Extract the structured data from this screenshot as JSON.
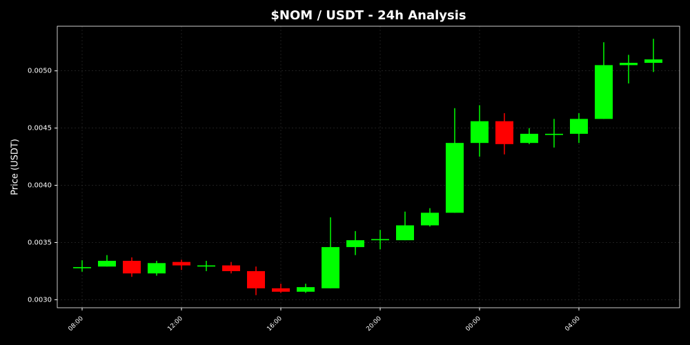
{
  "chart_data": {
    "type": "candlestick",
    "title": "$NOM / USDT - 24h Analysis",
    "y_label": "Price (USDT)",
    "categories": [
      "08:00",
      null,
      null,
      null,
      "12:00",
      null,
      null,
      null,
      "16:00",
      null,
      null,
      null,
      "20:00",
      null,
      null,
      null,
      "00:00",
      null,
      null,
      null,
      "04:00",
      null,
      null,
      null
    ],
    "open": [
      0.003275,
      0.00329,
      0.00334,
      0.00323,
      0.00333,
      0.00329,
      0.0033,
      0.00325,
      0.0031,
      0.00307,
      0.0031,
      0.00346,
      0.00352,
      0.00352,
      0.00365,
      0.00376,
      0.00437,
      0.00456,
      0.00437,
      0.00444,
      0.00445,
      0.00458,
      0.00505,
      0.00507
    ],
    "high": [
      0.003345,
      0.00339,
      0.00337,
      0.00334,
      0.00335,
      0.00334,
      0.00333,
      0.00329,
      0.00314,
      0.00314,
      0.00372,
      0.0036,
      0.00361,
      0.00377,
      0.0038,
      0.004674,
      0.0047,
      0.00463,
      0.0045,
      0.00458,
      0.00463,
      0.00525,
      0.00514,
      0.00528
    ],
    "low": [
      0.003245,
      0.00329,
      0.0032,
      0.00321,
      0.00326,
      0.00325,
      0.00323,
      0.00304,
      0.00306,
      0.00306,
      0.0031,
      0.00339,
      0.00344,
      0.00352,
      0.00364,
      0.00376,
      0.00425,
      0.00427,
      0.00436,
      0.00433,
      0.00437,
      0.00458,
      0.00489,
      0.00499
    ],
    "close": [
      0.003285,
      0.00334,
      0.00323,
      0.00332,
      0.0033,
      0.0033,
      0.00325,
      0.0031,
      0.00307,
      0.00311,
      0.00346,
      0.00352,
      0.00353,
      0.00365,
      0.00376,
      0.00437,
      0.00456,
      0.00436,
      0.00445,
      0.00445,
      0.00458,
      0.00505,
      0.00507,
      0.0051
    ],
    "up_color": "#00ff00",
    "down_color": "#ff0000",
    "ylim": [
      0.00293,
      0.00539
    ],
    "yticks": [
      {
        "value": 0.003,
        "label": "0.0030"
      },
      {
        "value": 0.0035,
        "label": "0.0035"
      },
      {
        "value": 0.004,
        "label": "0.0040"
      },
      {
        "value": 0.0045,
        "label": "0.0045"
      },
      {
        "value": 0.005,
        "label": "0.0050"
      }
    ],
    "grid": true
  }
}
